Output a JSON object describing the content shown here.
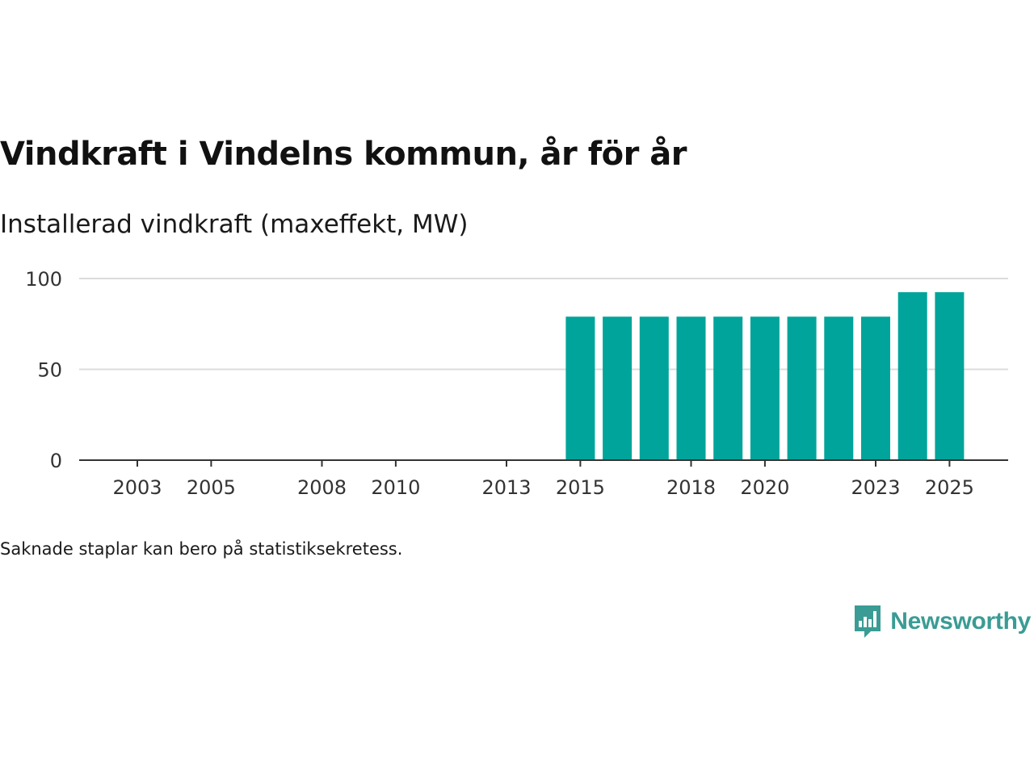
{
  "title": "Vindkraft i Vindelns kommun, år för år",
  "subtitle": "Installerad vindkraft (maxeffekt, MW)",
  "footnote": "Saknade staplar kan bero på statistiksekretess.",
  "brand": {
    "name": "Newsworthy",
    "color": "#3a9c94"
  },
  "chart_data": {
    "type": "bar",
    "title": "Vindkraft i Vindelns kommun, år för år",
    "ylabel": "Installerad vindkraft (maxeffekt, MW)",
    "xlabel": "",
    "ylim": [
      0,
      100
    ],
    "yticks": [
      0,
      50,
      100
    ],
    "xlim": [
      2002,
      2026
    ],
    "xticks": [
      2003,
      2005,
      2008,
      2010,
      2013,
      2015,
      2018,
      2020,
      2023,
      2025
    ],
    "grid": true,
    "bar_color": "#00a49a",
    "categories": [
      2015,
      2016,
      2017,
      2018,
      2019,
      2020,
      2021,
      2022,
      2023,
      2024,
      2025
    ],
    "values": [
      79,
      79,
      79,
      79,
      79,
      79,
      79,
      79,
      79,
      92.5,
      92.5
    ]
  }
}
